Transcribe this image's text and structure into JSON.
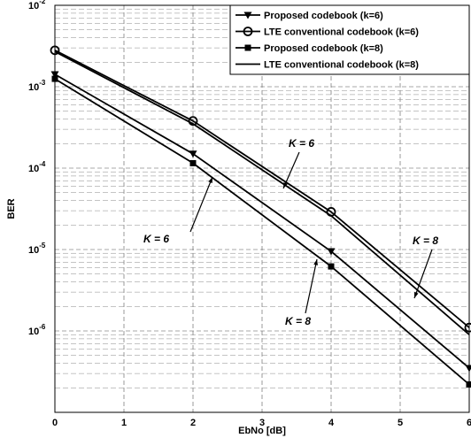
{
  "chart_data": {
    "type": "line",
    "title": "",
    "xlabel": "EbNo [dB]",
    "ylabel": "BER",
    "xlim": [
      0,
      6
    ],
    "ylim": [
      1e-07,
      0.01
    ],
    "yscale": "log",
    "grid": true,
    "legend_position": "top-right",
    "x_ticks": [
      "0",
      "1",
      "2",
      "3",
      "4",
      "5",
      "6"
    ],
    "y_ticks": [
      {
        "base": "10",
        "exp": "-2"
      },
      {
        "base": "10",
        "exp": "-3"
      },
      {
        "base": "10",
        "exp": "-4"
      },
      {
        "base": "10",
        "exp": "-5"
      },
      {
        "base": "10",
        "exp": "-6"
      }
    ],
    "series": [
      {
        "name": "Proposed codebook (k=6)",
        "marker": "triangle-down",
        "x": [
          0,
          2,
          4,
          6
        ],
        "values": [
          0.00142,
          0.00015,
          9.5e-06,
          3.5e-07
        ]
      },
      {
        "name": "LTE conventional codebook (k=6)",
        "marker": "circle",
        "x": [
          0,
          2,
          4,
          6
        ],
        "values": [
          0.0028,
          0.00038,
          2.9e-05,
          1.1e-06
        ]
      },
      {
        "name": "Proposed codebook (k=8)",
        "marker": "square",
        "x": [
          0,
          2,
          4,
          6
        ],
        "values": [
          0.00125,
          0.000115,
          6.2e-06,
          2.2e-07
        ]
      },
      {
        "name": "LTE conventional codebook (k=8)",
        "marker": "none",
        "x": [
          0,
          2,
          4,
          6
        ],
        "values": [
          0.0027,
          0.00035,
          2.6e-05,
          9e-07
        ]
      }
    ],
    "annotations": [
      "K = 6",
      "K = 6",
      "K = 8",
      "K = 8"
    ]
  }
}
